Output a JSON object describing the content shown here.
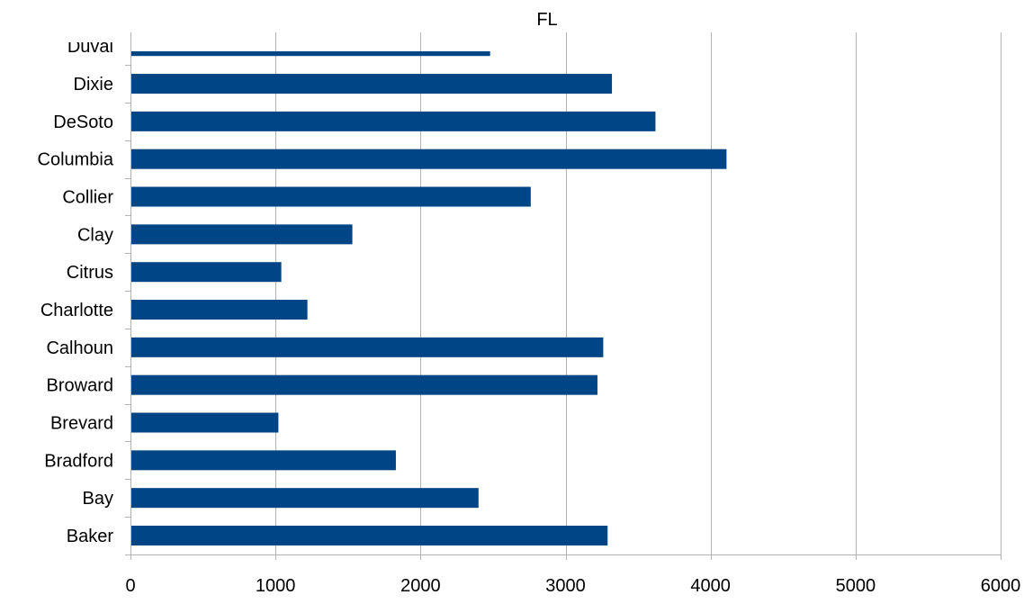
{
  "chart_data": {
    "type": "bar",
    "orientation": "horizontal",
    "title": "FL",
    "xlabel": "",
    "ylabel": "",
    "xlim": [
      0,
      6000
    ],
    "x_ticks": [
      0,
      1000,
      2000,
      3000,
      4000,
      5000,
      6000
    ],
    "grid": true,
    "legend": "none",
    "bar_color": "#004586",
    "categories": [
      "Baker",
      "Bay",
      "Bradford",
      "Brevard",
      "Broward",
      "Calhoun",
      "Charlotte",
      "Citrus",
      "Clay",
      "Collier",
      "Columbia",
      "DeSoto",
      "Dixie",
      "Duval"
    ],
    "values": [
      3290,
      2400,
      1830,
      1020,
      3220,
      3260,
      1220,
      1040,
      1530,
      2760,
      4110,
      3620,
      3320,
      2480
    ]
  }
}
